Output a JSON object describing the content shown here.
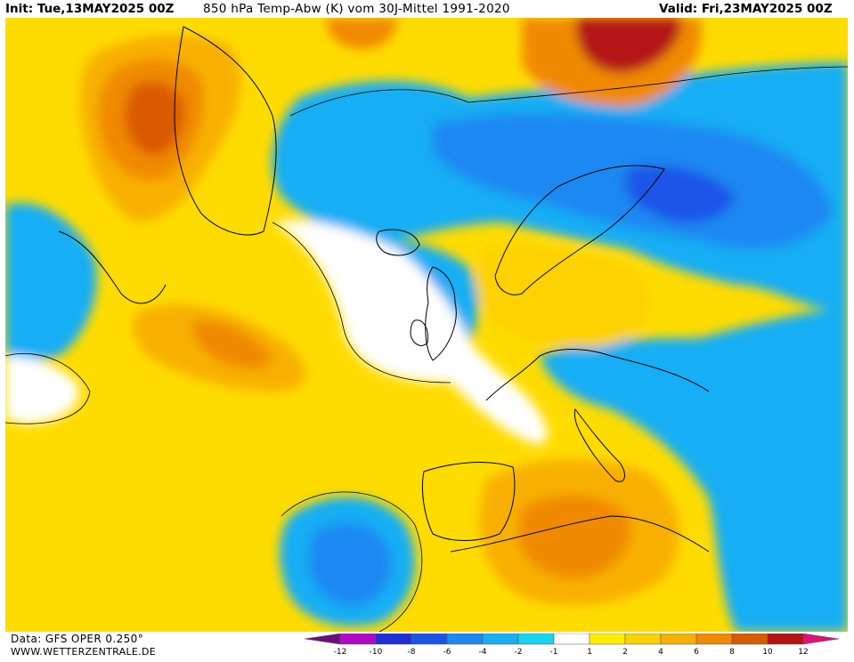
{
  "header": {
    "init": "Init: Tue,13MAY2025 00Z",
    "title": "850 hPa Temp-Abw (K) vom 30J-Mittel 1991-2020",
    "valid": "Valid: Fri,23MAY2025 00Z"
  },
  "footer": {
    "data_source": "Data: GFS OPER 0.250°",
    "website": "WWW.WETTERZENTRALE.DE"
  },
  "legend": {
    "bins": [
      {
        "color": "#6a0f7a",
        "from": null,
        "to": -12
      },
      {
        "color": "#b00ac8",
        "from": -12,
        "to": -10
      },
      {
        "color": "#1e2fd8",
        "from": -10,
        "to": -8
      },
      {
        "color": "#1a55e8",
        "from": -8,
        "to": -6
      },
      {
        "color": "#1e88f2",
        "from": -6,
        "to": -4
      },
      {
        "color": "#18aef4",
        "from": -4,
        "to": -2
      },
      {
        "color": "#14d6ee",
        "from": -2,
        "to": -1
      },
      {
        "color": "#ffffff",
        "from": -1,
        "to": 1
      },
      {
        "color": "#ffee00",
        "from": 1,
        "to": 2
      },
      {
        "color": "#fcd200",
        "from": 2,
        "to": 4
      },
      {
        "color": "#f8b000",
        "from": 4,
        "to": 6
      },
      {
        "color": "#f08a00",
        "from": 6,
        "to": 8
      },
      {
        "color": "#da5a00",
        "from": 8,
        "to": 10
      },
      {
        "color": "#b41414",
        "from": 10,
        "to": 12
      },
      {
        "color": "#dc1478",
        "from": 12,
        "to": null
      }
    ],
    "tick_labels": [
      "-12",
      "-10",
      "-8",
      "-6",
      "-4",
      "-2",
      "-1",
      "1",
      "2",
      "4",
      "6",
      "8",
      "10",
      "12"
    ]
  },
  "colors": {
    "land_outline": "#000000",
    "zero_contour": "#000000",
    "background": "#ffffff"
  }
}
